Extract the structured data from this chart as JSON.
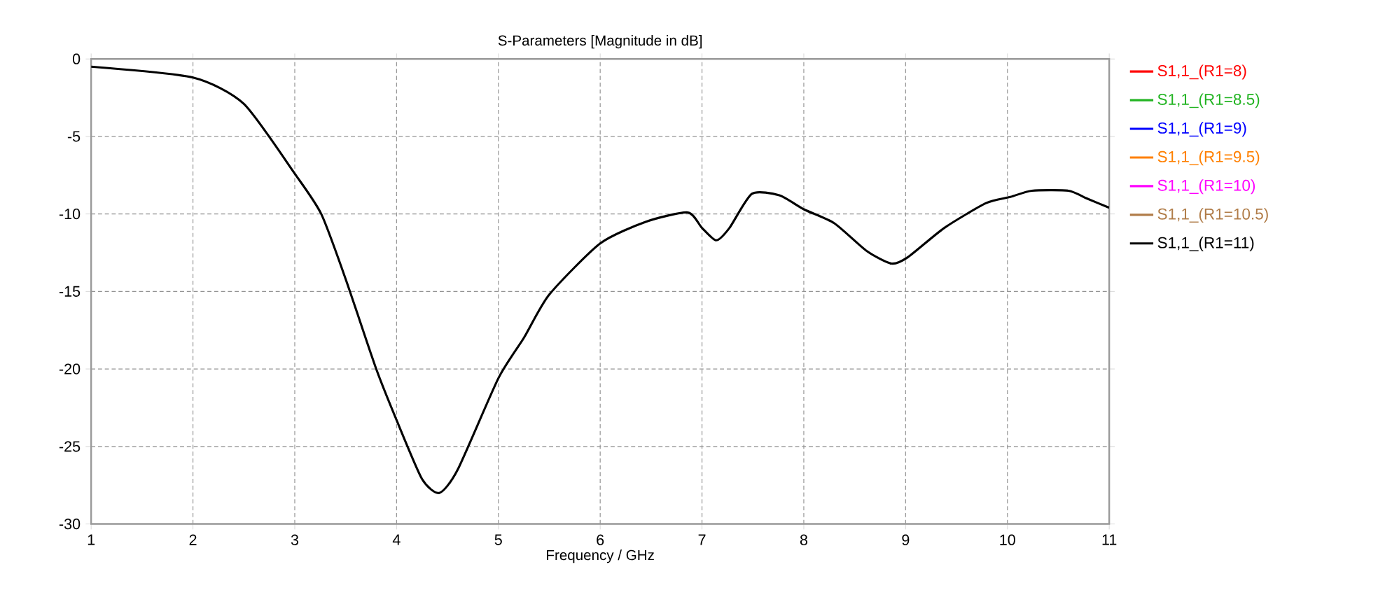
{
  "chart_data": {
    "type": "line",
    "title": "S-Parameters [Magnitude in dB]",
    "xlabel": "Frequency / GHz",
    "x": [
      1,
      2,
      2.5,
      3,
      3.26,
      3.5,
      3.8,
      4,
      4.25,
      4.42,
      4.6,
      5,
      5.25,
      5.5,
      6,
      6.45,
      6.86,
      7,
      7.14,
      7.27,
      7.49,
      7.76,
      8,
      8.3,
      8.62,
      8.86,
      9.02,
      9.38,
      9.79,
      10.03,
      10.24,
      10.6,
      10.78,
      11
    ],
    "series": [
      {
        "name": "S1,1_(R1=8)",
        "color": "#ff0000",
        "values": [
          null,
          null,
          null,
          null,
          null,
          null,
          null,
          null,
          null,
          null,
          null,
          null,
          null,
          null,
          null,
          null,
          null,
          null,
          null,
          null,
          null,
          null,
          null,
          null,
          null,
          null,
          null,
          null,
          null,
          null,
          null,
          null,
          null,
          null
        ]
      },
      {
        "name": "S1,1_(R1=8.5)",
        "color": "#22b422",
        "values": [
          null,
          null,
          null,
          null,
          null,
          null,
          null,
          null,
          null,
          null,
          null,
          null,
          null,
          null,
          null,
          null,
          null,
          null,
          null,
          null,
          null,
          null,
          null,
          null,
          null,
          null,
          null,
          null,
          null,
          null,
          null,
          null,
          null,
          null
        ]
      },
      {
        "name": "S1,1_(R1=9)",
        "color": "#0000ff",
        "values": [
          null,
          null,
          null,
          null,
          null,
          null,
          null,
          null,
          null,
          null,
          null,
          null,
          null,
          null,
          null,
          null,
          null,
          null,
          null,
          null,
          null,
          null,
          null,
          null,
          null,
          null,
          null,
          null,
          null,
          null,
          null,
          null,
          null,
          null
        ]
      },
      {
        "name": "S1,1_(R1=9.5)",
        "color": "#ff8000",
        "values": [
          null,
          null,
          null,
          null,
          null,
          null,
          null,
          null,
          null,
          null,
          null,
          null,
          null,
          null,
          null,
          null,
          null,
          null,
          null,
          null,
          null,
          null,
          null,
          null,
          null,
          null,
          null,
          null,
          null,
          null,
          null,
          null,
          null,
          null
        ]
      },
      {
        "name": "S1,1_(R1=10)",
        "color": "#ff00ff",
        "values": [
          null,
          null,
          null,
          null,
          null,
          null,
          null,
          null,
          null,
          null,
          null,
          null,
          null,
          null,
          null,
          null,
          null,
          null,
          null,
          null,
          null,
          null,
          null,
          null,
          null,
          null,
          null,
          null,
          null,
          null,
          null,
          null,
          null,
          null
        ]
      },
      {
        "name": "S1,1_(R1=10.5)",
        "color": "#b07c48",
        "values": [
          null,
          null,
          null,
          null,
          null,
          null,
          null,
          null,
          null,
          null,
          null,
          null,
          null,
          null,
          null,
          null,
          null,
          null,
          null,
          null,
          null,
          null,
          null,
          null,
          null,
          null,
          null,
          null,
          null,
          null,
          null,
          null,
          null,
          null
        ]
      },
      {
        "name": "S1,1_(R1=11)",
        "color": "#000000",
        "values": [
          -0.5,
          -1.2,
          -2.9,
          -7.4,
          -10,
          -14.2,
          -20,
          -23.3,
          -27.1,
          -28,
          -26.5,
          -20.6,
          -18,
          -15.2,
          -11.9,
          -10.5,
          -9.9,
          -10.9,
          -11.7,
          -10.9,
          -8.7,
          -8.8,
          -9.7,
          -10.6,
          -12.4,
          -13.2,
          -12.8,
          -10.9,
          -9.3,
          -8.9,
          -8.5,
          -8.5,
          -9,
          -9.6
        ]
      }
    ],
    "xlim": [
      1,
      11
    ],
    "ylim": [
      -30,
      0
    ],
    "xticks": [
      1,
      2,
      3,
      4,
      5,
      6,
      7,
      8,
      9,
      10,
      11
    ],
    "yticks": [
      -30,
      -25,
      -20,
      -15,
      -10,
      -5,
      0
    ],
    "grid": true,
    "legend": "right",
    "line_style": "solid",
    "marker": "none"
  }
}
